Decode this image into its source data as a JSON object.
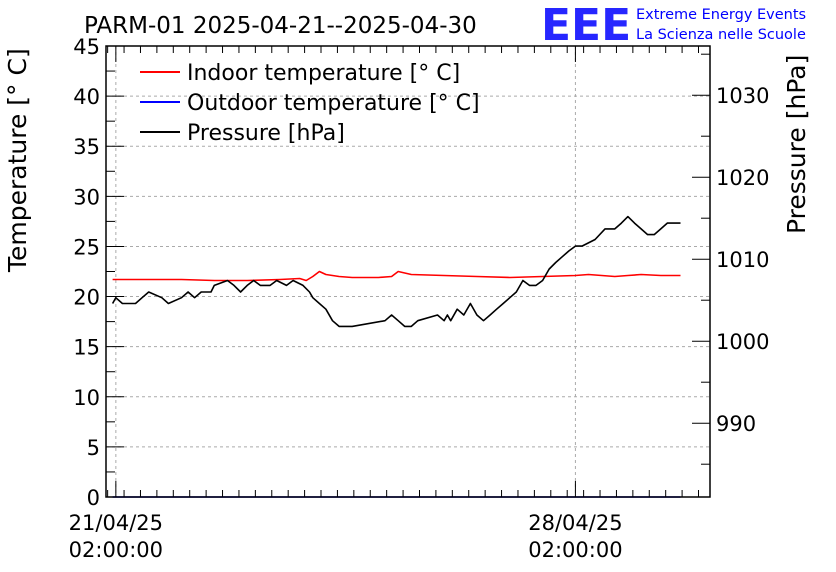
{
  "chart_data": {
    "type": "line",
    "title": "PARM-01 2025-04-21--2025-04-30",
    "ylabel": "Temperature [° C]",
    "y2label": "Pressure [hPa]",
    "ylim": [
      0,
      45
    ],
    "y2lim": [
      981,
      1036
    ],
    "xlim": [
      -0.15,
      9.05
    ],
    "x_unit": "days since 21/04/25 02:00:00",
    "yticks": [
      "0",
      "5",
      "10",
      "15",
      "20",
      "25",
      "30",
      "35",
      "40",
      "45"
    ],
    "y2ticks": [
      "990",
      "1000",
      "1010",
      "1020",
      "1030"
    ],
    "xticks": [
      {
        "line1": "21/04/25",
        "line2": "02:00:00"
      },
      {
        "line1": "28/04/25",
        "line2": "02:00:00"
      }
    ],
    "grid": true,
    "legend_position": "top-left",
    "series": [
      {
        "name": "Indoor temperature [° C]",
        "color": "#ff0000",
        "axis": "left",
        "x": [
          -0.05,
          0.2,
          0.5,
          1.0,
          1.5,
          2.0,
          2.5,
          2.8,
          2.9,
          3.0,
          3.1,
          3.2,
          3.4,
          3.6,
          4.0,
          4.2,
          4.3,
          4.5,
          5.0,
          5.5,
          6.0,
          6.5,
          7.0,
          7.2,
          7.4,
          7.6,
          7.8,
          8.0,
          8.3,
          8.6
        ],
        "y": [
          21.7,
          21.7,
          21.7,
          21.7,
          21.6,
          21.6,
          21.7,
          21.8,
          21.6,
          22.0,
          22.5,
          22.2,
          22.0,
          21.9,
          21.9,
          22.0,
          22.5,
          22.2,
          22.1,
          22.0,
          21.9,
          22.0,
          22.1,
          22.2,
          22.1,
          22.0,
          22.1,
          22.2,
          22.1,
          22.1
        ]
      },
      {
        "name": "Outdoor temperature [° C]",
        "color": "#0000ff",
        "axis": "left",
        "x": [
          -0.05,
          8.6
        ],
        "y": [
          0,
          0
        ]
      },
      {
        "name": "Pressure [hPa]",
        "color": "#000000",
        "axis": "right",
        "x": [
          -0.05,
          0.0,
          0.1,
          0.3,
          0.4,
          0.5,
          0.7,
          0.8,
          1.0,
          1.1,
          1.2,
          1.3,
          1.45,
          1.5,
          1.7,
          1.8,
          1.9,
          2.0,
          2.1,
          2.2,
          2.35,
          2.45,
          2.6,
          2.7,
          2.85,
          2.95,
          3.0,
          3.1,
          3.2,
          3.3,
          3.4,
          3.5,
          3.6,
          4.1,
          4.2,
          4.3,
          4.4,
          4.5,
          4.6,
          4.9,
          5.0,
          5.05,
          5.1,
          5.2,
          5.3,
          5.4,
          5.5,
          5.6,
          5.7,
          5.8,
          5.9,
          6.0,
          6.1,
          6.2,
          6.3,
          6.4,
          6.5,
          6.6,
          6.7,
          6.8,
          6.9,
          7.0,
          7.1,
          7.3,
          7.45,
          7.6,
          7.7,
          7.8,
          7.9,
          8.0,
          8.1,
          8.2,
          8.3,
          8.4,
          8.6
        ],
        "y": [
          1004.6,
          1005.3,
          1004.6,
          1004.6,
          1005.3,
          1006.0,
          1005.3,
          1004.6,
          1005.3,
          1006.0,
          1005.3,
          1006.0,
          1006.0,
          1006.8,
          1007.4,
          1006.8,
          1006.0,
          1006.8,
          1007.4,
          1006.8,
          1006.8,
          1007.4,
          1006.8,
          1007.4,
          1006.8,
          1006.0,
          1005.3,
          1004.6,
          1003.9,
          1002.5,
          1001.8,
          1001.8,
          1001.8,
          1002.5,
          1003.2,
          1002.5,
          1001.8,
          1001.8,
          1002.5,
          1003.2,
          1002.5,
          1003.2,
          1002.5,
          1003.9,
          1003.2,
          1004.6,
          1003.2,
          1002.5,
          1003.2,
          1003.9,
          1004.6,
          1005.3,
          1006.0,
          1007.4,
          1006.8,
          1006.8,
          1007.4,
          1008.8,
          1009.6,
          1010.3,
          1011.0,
          1011.6,
          1011.6,
          1012.4,
          1013.7,
          1013.7,
          1014.4,
          1015.2,
          1014.4,
          1013.7,
          1013.0,
          1013.0,
          1013.7,
          1014.4,
          1014.4
        ]
      }
    ]
  },
  "branding": {
    "logo": "EEE",
    "line1": "Extreme Energy Events",
    "line2": "La Scienza nelle Scuole",
    "color": "#0000ff"
  }
}
